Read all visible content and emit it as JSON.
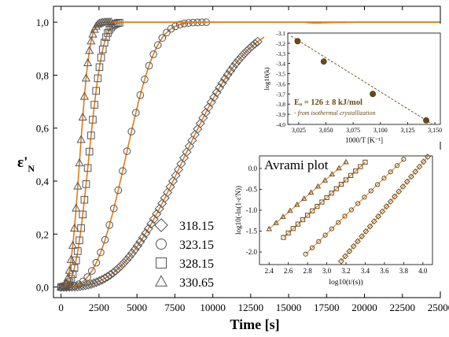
{
  "chart_data": [
    {
      "type": "scatter",
      "xlabel": "Time [s]",
      "ylabel_main": "ε'",
      "ylabel_sub": "N",
      "xlim": [
        -500,
        25000
      ],
      "ylim": [
        -0.04,
        1.06
      ],
      "x_ticks": [
        0,
        2500,
        5000,
        7500,
        10000,
        12500,
        15000,
        17500,
        20000,
        22500,
        25000
      ],
      "x_tick_labels": [
        "0",
        "2500",
        "5000",
        "7500",
        "10000",
        "12500",
        "15000",
        "17500",
        "20000",
        "22500",
        "25000"
      ],
      "y_ticks": [
        0,
        0.2,
        0.4,
        0.6,
        0.8,
        1.0
      ],
      "y_tick_labels": [
        "0,0",
        "0,2",
        "0,4",
        "0,6",
        "0,8",
        "1,0"
      ],
      "fit_color": "#e07b1a",
      "marker_color": "#555555",
      "series": [
        {
          "name": "318.15",
          "marker": "diamond",
          "x50": 8200,
          "n": 2.9,
          "x_start": 0,
          "x_end": 13000,
          "step": 180
        },
        {
          "name": "323.15",
          "marker": "circle",
          "x50": 4300,
          "n": 3.2,
          "x_start": 0,
          "x_end": 9800,
          "step": 290
        },
        {
          "name": "328.15",
          "marker": "square",
          "x50": 1850,
          "n": 3.0,
          "x_start": 0,
          "x_end": 3900,
          "step": 110
        },
        {
          "name": "330.65",
          "marker": "triangle",
          "x50": 1250,
          "n": 2.9,
          "x_start": 0,
          "x_end": 3300,
          "step": 110
        }
      ],
      "legend_position": "bottom-center"
    },
    {
      "type": "scatter",
      "ylabel": "log10(k)",
      "xlabel": "1000/T [K⁻¹]",
      "xlim": [
        3.015,
        3.155
      ],
      "ylim": [
        -4.0,
        -3.1
      ],
      "x_ticks": [
        3.025,
        3.05,
        3.075,
        3.1,
        3.125,
        3.15
      ],
      "x_tick_labels": [
        "3,025",
        "3,050",
        "3,075",
        "3,100",
        "3,125",
        "3,150"
      ],
      "y_ticks": [
        -3.1,
        -3.2,
        -3.3,
        -3.4,
        -3.5,
        -3.6,
        -3.7,
        -3.8,
        -3.9,
        -4.0
      ],
      "y_tick_labels": [
        "-3,1",
        "-3,2",
        "-3,3",
        "-3,4",
        "-3,5",
        "-3,6",
        "-3,7",
        "-3,8",
        "-3,9",
        "-4,0"
      ],
      "points": [
        {
          "x": 3.024,
          "y": -3.18
        },
        {
          "x": 3.048,
          "y": -3.38
        },
        {
          "x": 3.093,
          "y": -3.7
        },
        {
          "x": 3.142,
          "y": -3.96
        }
      ],
      "fit_line": [
        [
          3.018,
          -3.13
        ],
        [
          3.148,
          -4.0
        ]
      ],
      "annotation": "Eₐ = 126 ± 8 kJ/mol",
      "annotation_sub": "- from isothermal crystallization",
      "point_color": "#6b4a16"
    },
    {
      "type": "scatter",
      "title": "Avrami plot",
      "ylabel": "log10(-ln(1-ε'N))",
      "xlabel": "log10(t/(s))",
      "xlim": [
        2.3,
        4.1
      ],
      "ylim": [
        -2.3,
        0.3
      ],
      "x_ticks": [
        2.4,
        2.6,
        2.8,
        3.0,
        3.2,
        3.4,
        3.6,
        3.8,
        4.0
      ],
      "x_tick_labels": [
        "2.4",
        "2.6",
        "2.8",
        "3.0",
        "3.2",
        "3.4",
        "3.6",
        "3.8",
        "4.0"
      ],
      "y_ticks": [
        0.0,
        -0.5,
        -1.0,
        -1.5,
        -2.0
      ],
      "y_tick_labels": [
        "0.0",
        "-0.5",
        "-1.0",
        "-1.5",
        "-2.0"
      ],
      "series": [
        {
          "marker": "triangle",
          "x0": 2.4,
          "y0": -1.45,
          "x1": 3.2,
          "y1": 0.15,
          "count": 12
        },
        {
          "marker": "square",
          "x0": 2.55,
          "y0": -1.65,
          "x1": 3.4,
          "y1": 0.15,
          "count": 18
        },
        {
          "marker": "circle",
          "x0": 2.78,
          "y0": -2.05,
          "x1": 3.8,
          "y1": 0.22,
          "count": 16
        },
        {
          "marker": "diamond",
          "x0": 3.15,
          "y0": -2.22,
          "x1": 4.05,
          "y1": 0.28,
          "count": 22
        }
      ],
      "line_color": "#e07b1a",
      "marker_color": "#6b4a16"
    }
  ]
}
